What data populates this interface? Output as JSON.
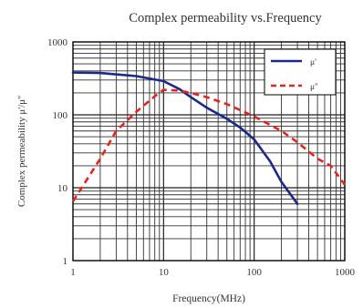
{
  "chart_data": {
    "type": "line",
    "title": "Complex permeability vs.Frequency",
    "xlabel": "Frequency(MHz)",
    "ylabel": "Complex permeability μ'/μ''",
    "x_scale": "log",
    "y_scale": "log",
    "xlim": [
      1,
      1000
    ],
    "ylim": [
      1,
      1000
    ],
    "x_ticks": [
      "1",
      "10",
      "100",
      "1000"
    ],
    "y_ticks": [
      "1",
      "10",
      "100",
      "1000"
    ],
    "grid": true,
    "legend_position": "top-right",
    "series": [
      {
        "name": "μ'",
        "color": "#1a2a8a",
        "style": "solid",
        "x": [
          1,
          2,
          5,
          10,
          15,
          20,
          30,
          50,
          70,
          100,
          150,
          200,
          300
        ],
        "y": [
          380,
          375,
          340,
          290,
          225,
          175,
          125,
          88,
          67,
          46,
          23,
          12,
          6
        ]
      },
      {
        "name": "μ''",
        "color": "#e8231c",
        "style": "dashed",
        "x": [
          1,
          2,
          3,
          5,
          8,
          10,
          15,
          20,
          30,
          50,
          100,
          200,
          300,
          500,
          700,
          1000
        ],
        "y": [
          6.5,
          25,
          60,
          110,
          180,
          220,
          215,
          200,
          175,
          140,
          95,
          60,
          42,
          25,
          20,
          11
        ]
      }
    ]
  }
}
